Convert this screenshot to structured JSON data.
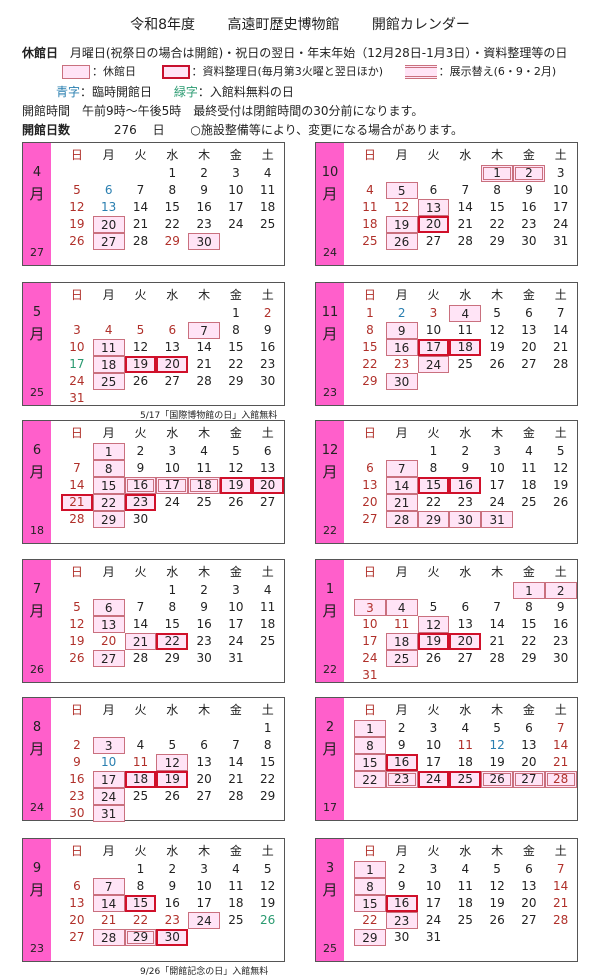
{
  "header": {
    "title_parts": [
      "令和8年度",
      "高遠町歴史博物館",
      "開館カレンダー"
    ]
  },
  "info": {
    "closed_label": "休館日",
    "closed_text": "月曜日(祝祭日の場合は開館)・祝日の翌日・年末年始（12月28日-1月3日）・資料整理等の日",
    "legend_closed": "：休館日",
    "legend_resource": "：資料整理日(毎月第3火曜と翌日ほか)",
    "legend_exhibit": "：展示替え(6・9・2月)",
    "blue_label": "青字",
    "blue_text": "：臨時開館日",
    "green_label": "緑字",
    "green_text": "：入館料無料の日",
    "hours": "開館時間　午前9時～午後5時　最終受付は閉館時間の30分前になります。",
    "days_label": "開館日数",
    "days_value": "276",
    "days_unit": "日",
    "notice": "○施設整備等により、変更になる場合があります。"
  },
  "weekdays": [
    "日",
    "月",
    "火",
    "水",
    "木",
    "金",
    "土"
  ],
  "month_suffix": "月",
  "colors": {
    "strip": "#ff5fcb",
    "closed_fill": "#ffe4f6",
    "resource_border": "#d0102a",
    "holiday_text": "#b0302a",
    "temp_open_text": "#2a7fb0",
    "free_text": "#2a9a70"
  },
  "months": [
    {
      "month": "4",
      "open_days": "27",
      "offset": 3,
      "days": 30,
      "closed": [
        20,
        27,
        30
      ],
      "resource": [],
      "exhibit": [],
      "red": [
        5,
        12,
        19,
        26,
        29
      ],
      "blue": [
        6,
        13
      ],
      "green": []
    },
    {
      "month": "10",
      "open_days": "24",
      "offset": 4,
      "days": 31,
      "closed": [
        5,
        13,
        19,
        26
      ],
      "resource": [
        20
      ],
      "exhibit": [
        1,
        2
      ],
      "red": [
        4,
        11,
        12,
        18,
        25
      ],
      "blue": [],
      "green": []
    },
    {
      "month": "5",
      "open_days": "25",
      "offset": 5,
      "days": 31,
      "closed": [
        7,
        11,
        18,
        25
      ],
      "resource": [
        19,
        20
      ],
      "exhibit": [],
      "red": [
        2,
        3,
        4,
        5,
        6,
        10,
        24,
        31
      ],
      "blue": [],
      "green": [
        17
      ],
      "note": "5/17「国際博物館の日」入館無料"
    },
    {
      "month": "11",
      "open_days": "23",
      "offset": 0,
      "days": 30,
      "closed": [
        4,
        9,
        16,
        24,
        30
      ],
      "resource": [
        17,
        18
      ],
      "exhibit": [],
      "red": [
        1,
        3,
        8,
        15,
        22,
        23,
        29
      ],
      "blue": [
        2
      ],
      "green": []
    },
    {
      "month": "6",
      "open_days": "18",
      "offset": 1,
      "days": 30,
      "closed": [
        1,
        8,
        15,
        22,
        29
      ],
      "resource": [
        19,
        20,
        21,
        23
      ],
      "exhibit": [
        16,
        17,
        18
      ],
      "red": [
        7,
        14,
        21,
        28
      ],
      "blue": [],
      "green": []
    },
    {
      "month": "12",
      "open_days": "22",
      "offset": 2,
      "days": 31,
      "closed": [
        7,
        14,
        21,
        28,
        29,
        30,
        31
      ],
      "resource": [
        15,
        16
      ],
      "exhibit": [],
      "red": [
        6,
        13,
        20,
        27
      ],
      "blue": [],
      "green": []
    },
    {
      "month": "7",
      "open_days": "26",
      "offset": 3,
      "days": 31,
      "closed": [
        6,
        13,
        21,
        27
      ],
      "resource": [
        22
      ],
      "exhibit": [],
      "red": [
        5,
        12,
        19,
        20,
        26
      ],
      "blue": [],
      "green": []
    },
    {
      "month": "1",
      "open_days": "22",
      "offset": 5,
      "days": 31,
      "closed": [
        1,
        2,
        3,
        4,
        12,
        18,
        25
      ],
      "resource": [
        19,
        20
      ],
      "exhibit": [],
      "red": [
        3,
        10,
        11,
        17,
        24,
        31
      ],
      "blue": [],
      "green": []
    },
    {
      "month": "8",
      "open_days": "24",
      "offset": 6,
      "days": 31,
      "closed": [
        3,
        12,
        17,
        24,
        31
      ],
      "resource": [
        18,
        19
      ],
      "exhibit": [],
      "red": [
        2,
        9,
        11,
        16,
        23,
        30
      ],
      "blue": [
        10
      ],
      "green": []
    },
    {
      "month": "2",
      "open_days": "17",
      "offset": 0,
      "days": 28,
      "closed": [
        1,
        8,
        15,
        22
      ],
      "resource": [
        16,
        24,
        25
      ],
      "exhibit": [
        23,
        26,
        27,
        28
      ],
      "red": [
        7,
        11,
        14,
        21,
        28
      ],
      "blue": [
        12
      ],
      "green": []
    },
    {
      "month": "9",
      "open_days": "23",
      "offset": 2,
      "days": 30,
      "closed": [
        7,
        14,
        24,
        28
      ],
      "resource": [
        15,
        30
      ],
      "exhibit": [
        29
      ],
      "red": [
        6,
        13,
        20,
        21,
        22,
        23,
        27
      ],
      "blue": [],
      "green": [
        26
      ],
      "note": "9/26「開館記念の日」入館無料"
    },
    {
      "month": "3",
      "open_days": "25",
      "offset": 0,
      "days": 31,
      "closed": [
        1,
        8,
        15,
        23,
        29
      ],
      "resource": [
        16
      ],
      "exhibit": [],
      "red": [
        7,
        14,
        21,
        22,
        28
      ],
      "blue": [],
      "green": []
    }
  ]
}
